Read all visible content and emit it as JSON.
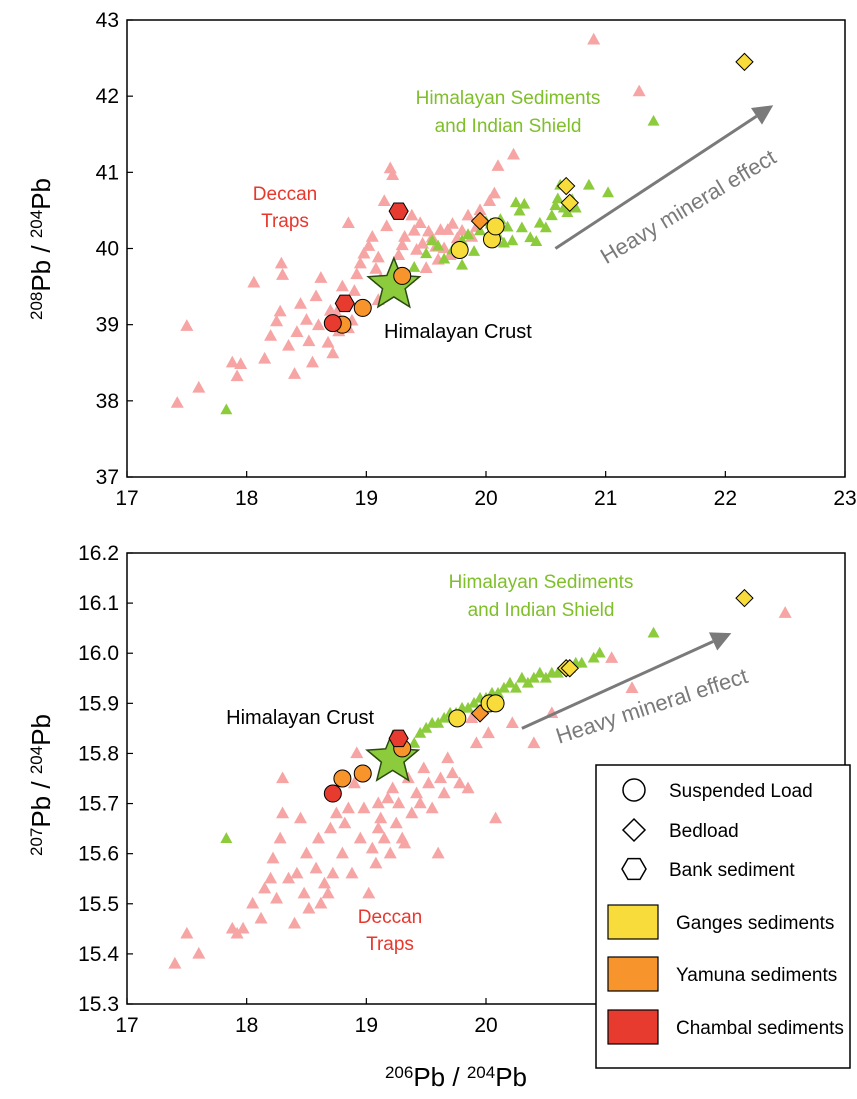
{
  "colors": {
    "deccan": "#f6a4a4",
    "himalayan": "#8ccc3c",
    "ganges": "#f8dc3c",
    "yamuna": "#f7952c",
    "chambal": "#e63b2e",
    "deccan_label": "#e8372c",
    "himalayan_label": "#7fbf2a",
    "arrow": "#7a7a7a"
  },
  "chart_data": [
    {
      "type": "scatter",
      "xlabel": {
        "pre": "206",
        "main": "Pb / ",
        "sup2": "204",
        "end": "Pb"
      },
      "ylabel": {
        "pre": "208",
        "main": "Pb / ",
        "sup2": "204",
        "end": "Pb"
      },
      "xlim": [
        17,
        23
      ],
      "ylim": [
        37,
        43
      ],
      "xticks": [
        "17",
        "18",
        "19",
        "20",
        "21",
        "22",
        "23"
      ],
      "yticks": [
        "37",
        "38",
        "39",
        "40",
        "41",
        "42",
        "43"
      ],
      "annotations": {
        "deccan": [
          "Deccan",
          "Traps"
        ],
        "himalayan": [
          "Himalayan Sediments",
          "and Indian Shield"
        ],
        "crust": "Himalayan Crust",
        "arrow": "Heavy mineral effect"
      },
      "himalayan_crust": [
        19.23,
        39.52
      ],
      "deccan_traps": [
        [
          17.42,
          37.97
        ],
        [
          17.5,
          38.98
        ],
        [
          17.6,
          38.17
        ],
        [
          17.88,
          38.5
        ],
        [
          17.92,
          38.32
        ],
        [
          17.95,
          38.48
        ],
        [
          18.06,
          39.55
        ],
        [
          18.15,
          38.55
        ],
        [
          18.2,
          38.85
        ],
        [
          18.25,
          39.04
        ],
        [
          18.28,
          39.17
        ],
        [
          18.29,
          39.8
        ],
        [
          18.3,
          39.65
        ],
        [
          18.35,
          38.72
        ],
        [
          18.4,
          38.35
        ],
        [
          18.42,
          38.9
        ],
        [
          18.45,
          39.27
        ],
        [
          18.5,
          39.06
        ],
        [
          18.52,
          38.78
        ],
        [
          18.55,
          38.5
        ],
        [
          18.58,
          39.37
        ],
        [
          18.6,
          38.99
        ],
        [
          18.62,
          39.61
        ],
        [
          18.68,
          38.76
        ],
        [
          18.7,
          39.18
        ],
        [
          18.72,
          38.62
        ],
        [
          18.75,
          39.15
        ],
        [
          18.77,
          38.91
        ],
        [
          18.8,
          39.5
        ],
        [
          18.82,
          39.26
        ],
        [
          18.85,
          38.95
        ],
        [
          18.85,
          40.33
        ],
        [
          18.88,
          39.05
        ],
        [
          18.9,
          39.44
        ],
        [
          18.92,
          39.66
        ],
        [
          18.95,
          39.8
        ],
        [
          18.98,
          39.93
        ],
        [
          19.02,
          40.03
        ],
        [
          19.05,
          40.15
        ],
        [
          19.08,
          39.73
        ],
        [
          19.1,
          39.88
        ],
        [
          19.1,
          39.32
        ],
        [
          19.12,
          39.6
        ],
        [
          19.15,
          40.62
        ],
        [
          19.17,
          40.29
        ],
        [
          19.2,
          41.05
        ],
        [
          19.22,
          39.7
        ],
        [
          19.22,
          40.96
        ],
        [
          19.27,
          39.91
        ],
        [
          19.3,
          40.04
        ],
        [
          19.32,
          40.15
        ],
        [
          19.35,
          39.61
        ],
        [
          19.38,
          40.43
        ],
        [
          19.4,
          40.23
        ],
        [
          19.42,
          39.98
        ],
        [
          19.45,
          40.33
        ],
        [
          19.47,
          40.06
        ],
        [
          19.5,
          39.74
        ],
        [
          19.52,
          40.22
        ],
        [
          19.55,
          40.14
        ],
        [
          19.58,
          40.02
        ],
        [
          19.6,
          39.85
        ],
        [
          19.62,
          40.24
        ],
        [
          19.65,
          40.0
        ],
        [
          19.68,
          40.24
        ],
        [
          19.7,
          39.91
        ],
        [
          19.72,
          40.32
        ],
        [
          19.76,
          40.13
        ],
        [
          19.8,
          40.23
        ],
        [
          19.85,
          40.43
        ],
        [
          19.88,
          40.15
        ],
        [
          19.92,
          40.28
        ],
        [
          19.95,
          40.5
        ],
        [
          20.03,
          40.62
        ],
        [
          20.07,
          40.72
        ],
        [
          20.1,
          41.08
        ],
        [
          20.23,
          41.23
        ],
        [
          21.28,
          42.06
        ],
        [
          20.9,
          42.74
        ]
      ],
      "himalayan_sediments": [
        [
          17.83,
          37.88
        ],
        [
          19.4,
          39.75
        ],
        [
          19.5,
          39.93
        ],
        [
          19.55,
          40.1
        ],
        [
          19.6,
          40.03
        ],
        [
          19.65,
          39.86
        ],
        [
          19.72,
          39.98
        ],
        [
          19.8,
          40.1
        ],
        [
          19.8,
          39.78
        ],
        [
          19.85,
          40.18
        ],
        [
          19.9,
          39.96
        ],
        [
          19.95,
          40.23
        ],
        [
          20.0,
          40.35
        ],
        [
          20.04,
          40.32
        ],
        [
          20.07,
          40.12
        ],
        [
          20.1,
          40.17
        ],
        [
          20.12,
          40.38
        ],
        [
          20.15,
          40.07
        ],
        [
          20.18,
          40.28
        ],
        [
          20.22,
          40.1
        ],
        [
          20.25,
          40.6
        ],
        [
          20.28,
          40.49
        ],
        [
          20.3,
          40.27
        ],
        [
          20.32,
          40.58
        ],
        [
          20.37,
          40.14
        ],
        [
          20.42,
          40.09
        ],
        [
          20.45,
          40.33
        ],
        [
          20.5,
          40.27
        ],
        [
          20.55,
          40.43
        ],
        [
          20.58,
          40.56
        ],
        [
          20.6,
          40.65
        ],
        [
          20.62,
          40.83
        ],
        [
          20.65,
          40.53
        ],
        [
          20.68,
          40.47
        ],
        [
          20.72,
          40.64
        ],
        [
          20.75,
          40.53
        ],
        [
          20.86,
          40.83
        ],
        [
          21.02,
          40.73
        ],
        [
          21.4,
          41.67
        ]
      ],
      "ganges": {
        "circles": [
          [
            19.78,
            39.98
          ],
          [
            20.05,
            40.12
          ],
          [
            20.08,
            40.29
          ]
        ],
        "diamonds": [
          [
            20.67,
            40.82
          ],
          [
            20.7,
            40.6
          ],
          [
            22.16,
            42.45
          ]
        ]
      },
      "yamuna": {
        "circles": [
          [
            18.8,
            39.0
          ],
          [
            18.97,
            39.22
          ],
          [
            19.3,
            39.64
          ]
        ],
        "diamonds": [
          [
            19.95,
            40.36
          ]
        ]
      },
      "chambal": {
        "circles": [
          [
            18.72,
            39.02
          ]
        ],
        "hexagons": [
          [
            18.82,
            39.28
          ],
          [
            19.27,
            40.49
          ]
        ]
      },
      "arrow": {
        "from": [
          20.58,
          40.0
        ],
        "to": [
          22.4,
          41.88
        ]
      }
    },
    {
      "type": "scatter",
      "xlabel": {
        "pre": "206",
        "main": "Pb / ",
        "sup2": "204",
        "end": "Pb"
      },
      "ylabel": {
        "pre": "207",
        "main": "Pb / ",
        "sup2": "204",
        "end": "Pb"
      },
      "xlim": [
        17,
        23
      ],
      "ylim": [
        15.3,
        16.2
      ],
      "xticks": [
        "17",
        "18",
        "19",
        "20"
      ],
      "yticks": [
        "15.3",
        "15.4",
        "15.5",
        "15.6",
        "15.7",
        "15.8",
        "15.9",
        "16.0",
        "16.1",
        "16.2"
      ],
      "annotations": {
        "deccan": [
          "Deccan",
          "Traps"
        ],
        "himalayan": [
          "Himalayan Sediments",
          "and Indian Shield"
        ],
        "crust": "Himalayan Crust",
        "arrow": "Heavy mineral effect"
      },
      "himalayan_crust": [
        19.22,
        15.79
      ],
      "deccan_traps": [
        [
          17.4,
          15.38
        ],
        [
          17.5,
          15.44
        ],
        [
          17.6,
          15.4
        ],
        [
          17.88,
          15.45
        ],
        [
          17.92,
          15.44
        ],
        [
          17.97,
          15.45
        ],
        [
          18.05,
          15.5
        ],
        [
          18.12,
          15.47
        ],
        [
          18.15,
          15.53
        ],
        [
          18.2,
          15.55
        ],
        [
          18.22,
          15.59
        ],
        [
          18.25,
          15.51
        ],
        [
          18.28,
          15.63
        ],
        [
          18.3,
          15.68
        ],
        [
          18.3,
          15.75
        ],
        [
          18.35,
          15.55
        ],
        [
          18.4,
          15.46
        ],
        [
          18.42,
          15.56
        ],
        [
          18.45,
          15.67
        ],
        [
          18.48,
          15.52
        ],
        [
          18.5,
          15.6
        ],
        [
          18.52,
          15.49
        ],
        [
          18.58,
          15.57
        ],
        [
          18.6,
          15.63
        ],
        [
          18.62,
          15.5
        ],
        [
          18.65,
          15.54
        ],
        [
          18.68,
          15.52
        ],
        [
          18.7,
          15.65
        ],
        [
          18.72,
          15.56
        ],
        [
          18.75,
          15.68
        ],
        [
          18.8,
          15.6
        ],
        [
          18.82,
          15.66
        ],
        [
          18.85,
          15.69
        ],
        [
          18.88,
          15.56
        ],
        [
          18.9,
          15.74
        ],
        [
          18.92,
          15.8
        ],
        [
          18.95,
          15.63
        ],
        [
          18.98,
          15.69
        ],
        [
          19.02,
          15.52
        ],
        [
          19.05,
          15.61
        ],
        [
          19.08,
          15.58
        ],
        [
          19.1,
          15.65
        ],
        [
          19.1,
          15.7
        ],
        [
          19.12,
          15.67
        ],
        [
          19.15,
          15.63
        ],
        [
          19.18,
          15.71
        ],
        [
          19.2,
          15.6
        ],
        [
          19.22,
          15.73
        ],
        [
          19.25,
          15.66
        ],
        [
          19.27,
          15.7
        ],
        [
          19.3,
          15.63
        ],
        [
          19.32,
          15.62
        ],
        [
          19.35,
          15.75
        ],
        [
          19.38,
          15.68
        ],
        [
          19.42,
          15.72
        ],
        [
          19.45,
          15.7
        ],
        [
          19.48,
          15.77
        ],
        [
          19.52,
          15.74
        ],
        [
          19.55,
          15.69
        ],
        [
          19.6,
          15.6
        ],
        [
          19.62,
          15.75
        ],
        [
          19.65,
          15.72
        ],
        [
          19.68,
          15.79
        ],
        [
          19.72,
          15.76
        ],
        [
          19.78,
          15.74
        ],
        [
          19.85,
          15.73
        ],
        [
          19.88,
          15.87
        ],
        [
          19.92,
          15.82
        ],
        [
          20.02,
          15.84
        ],
        [
          20.08,
          15.67
        ],
        [
          20.22,
          15.86
        ],
        [
          20.4,
          15.82
        ],
        [
          20.55,
          15.88
        ],
        [
          21.05,
          15.99
        ],
        [
          21.22,
          15.93
        ],
        [
          22.5,
          16.08
        ]
      ],
      "himalayan_sediments": [
        [
          17.83,
          15.63
        ],
        [
          19.4,
          15.82
        ],
        [
          19.45,
          15.84
        ],
        [
          19.5,
          15.85
        ],
        [
          19.55,
          15.86
        ],
        [
          19.6,
          15.86
        ],
        [
          19.65,
          15.87
        ],
        [
          19.7,
          15.88
        ],
        [
          19.75,
          15.88
        ],
        [
          19.8,
          15.89
        ],
        [
          19.85,
          15.89
        ],
        [
          19.9,
          15.9
        ],
        [
          19.95,
          15.91
        ],
        [
          20.0,
          15.91
        ],
        [
          20.05,
          15.92
        ],
        [
          20.1,
          15.92
        ],
        [
          20.15,
          15.93
        ],
        [
          20.2,
          15.94
        ],
        [
          20.25,
          15.93
        ],
        [
          20.3,
          15.95
        ],
        [
          20.35,
          15.94
        ],
        [
          20.4,
          15.95
        ],
        [
          20.45,
          15.96
        ],
        [
          20.5,
          15.95
        ],
        [
          20.55,
          15.96
        ],
        [
          20.6,
          15.96
        ],
        [
          20.65,
          15.97
        ],
        [
          20.7,
          15.97
        ],
        [
          20.75,
          15.98
        ],
        [
          20.8,
          15.98
        ],
        [
          20.9,
          15.99
        ],
        [
          20.95,
          16.0
        ],
        [
          21.4,
          16.04
        ]
      ],
      "ganges": {
        "circles": [
          [
            19.76,
            15.87
          ],
          [
            20.03,
            15.9
          ],
          [
            20.08,
            15.9
          ]
        ],
        "diamonds": [
          [
            20.67,
            15.97
          ],
          [
            20.7,
            15.97
          ],
          [
            22.16,
            16.11
          ]
        ]
      },
      "yamuna": {
        "circles": [
          [
            18.8,
            15.75
          ],
          [
            18.97,
            15.76
          ],
          [
            19.3,
            15.81
          ]
        ],
        "diamonds": [
          [
            19.95,
            15.88
          ]
        ]
      },
      "chambal": {
        "circles": [
          [
            18.72,
            15.72
          ]
        ],
        "hexagons": [
          [
            19.27,
            15.83
          ]
        ]
      },
      "arrow": {
        "from": [
          20.3,
          15.85
        ],
        "to": [
          22.05,
          16.04
        ]
      }
    }
  ],
  "legend": {
    "symbols": [
      {
        "shape": "circle",
        "label": "Suspended Load"
      },
      {
        "shape": "diamond",
        "label": "Bedload"
      },
      {
        "shape": "hexagon",
        "label": "Bank sediment"
      }
    ],
    "colors": [
      {
        "key": "ganges",
        "label": "Ganges sediments"
      },
      {
        "key": "yamuna",
        "label": "Yamuna sediments"
      },
      {
        "key": "chambal",
        "label": "Chambal sediments"
      }
    ]
  }
}
